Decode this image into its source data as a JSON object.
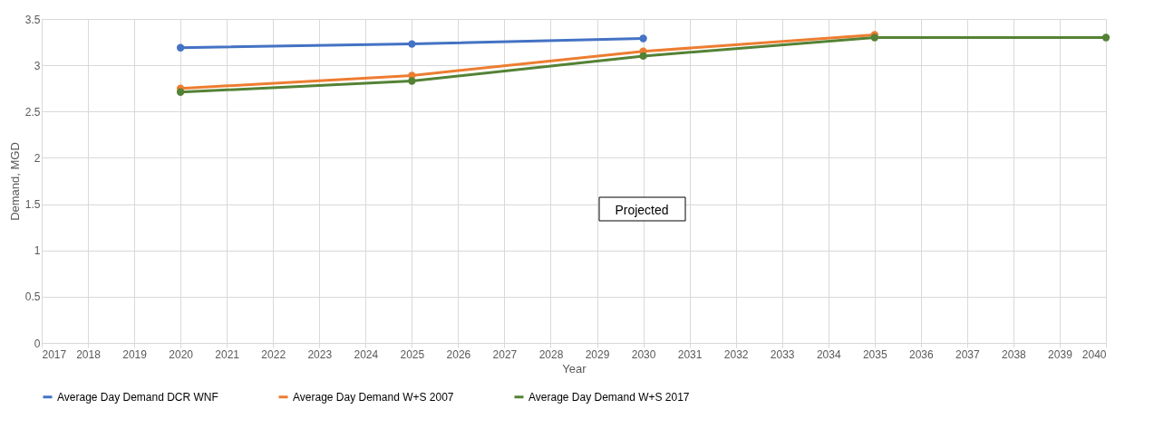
{
  "chart_data": {
    "type": "line",
    "xlabel": "Year",
    "ylabel": "Demand, MGD",
    "xlim": [
      2017,
      2040
    ],
    "xticks": [
      2017,
      2018,
      2019,
      2020,
      2021,
      2022,
      2023,
      2024,
      2025,
      2026,
      2027,
      2028,
      2029,
      2030,
      2031,
      2032,
      2033,
      2034,
      2035,
      2036,
      2037,
      2038,
      2039,
      2040
    ],
    "ylim": [
      0,
      3.5
    ],
    "yticks": [
      0,
      0.5,
      1,
      1.5,
      2,
      2.5,
      3,
      3.5
    ],
    "grid": true,
    "legend": "bottom",
    "marker": "circle",
    "line_style": "solid",
    "annotations": [
      "Projected"
    ],
    "series": [
      {
        "name": "Average Day Demand DCR WNF",
        "color": "#4472c4",
        "x": [
          2020,
          2025,
          2030
        ],
        "values": [
          3.19,
          3.23,
          3.29
        ]
      },
      {
        "name": "Average Day Demand W+S 2007",
        "color": "#ed7d31",
        "x": [
          2020,
          2025,
          2030,
          2035
        ],
        "values": [
          2.75,
          2.89,
          3.15,
          3.33
        ]
      },
      {
        "name": "Average Day Demand W+S 2017",
        "color": "#548235",
        "x": [
          2020,
          2025,
          2030,
          2035,
          2040
        ],
        "values": [
          2.71,
          2.83,
          3.1,
          3.3,
          3.3
        ]
      }
    ]
  }
}
